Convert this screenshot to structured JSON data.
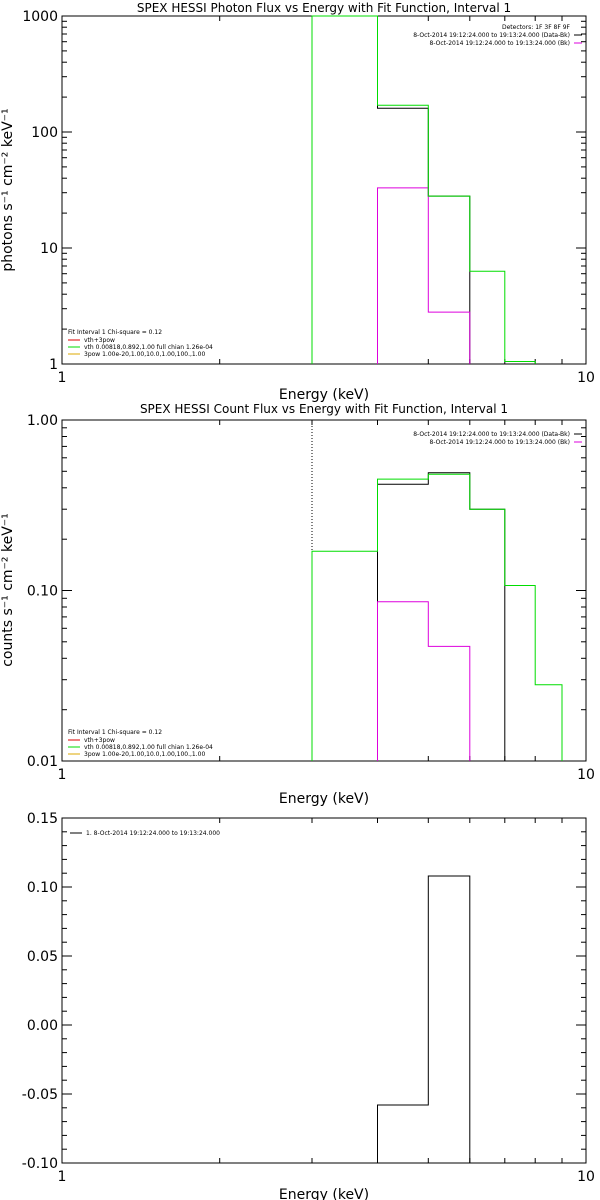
{
  "colors": {
    "background": "#ffffff",
    "axis": "#000000",
    "black": "#000000",
    "green": "#00dd00",
    "magenta": "#dd00dd",
    "red": "#dd0000",
    "orange": "#ddaa00"
  },
  "chart_data": [
    {
      "type": "line",
      "step": true,
      "title": "SPEX HESSI Photon Flux vs Energy with Fit Function, Interval 1",
      "xlabel": "Energy (keV)",
      "ylabel": "photons s⁻¹ cm⁻² keV⁻¹",
      "xscale": "log",
      "yscale": "log",
      "xlim": [
        1,
        10
      ],
      "ylim": [
        1,
        1000
      ],
      "xticks": [
        1,
        10
      ],
      "xtick_labels": [
        "1",
        "10"
      ],
      "yticks": [
        1,
        10,
        100,
        1000
      ],
      "ytick_labels": [
        "1",
        "10",
        "100",
        "1000"
      ],
      "vline": {
        "x": 3,
        "style": "dotted"
      },
      "series": [
        {
          "color_key": "black",
          "edges": [
            3,
            4,
            5,
            6
          ],
          "values": [
            1000,
            160,
            28
          ]
        },
        {
          "color_key": "magenta",
          "edges": [
            4,
            5,
            6
          ],
          "values": [
            33,
            2.8
          ]
        },
        {
          "color_key": "green",
          "edges": [
            3,
            4,
            5,
            6,
            7,
            8
          ],
          "values": [
            1000,
            170,
            28,
            6.3,
            1.05
          ]
        }
      ],
      "legend_right": {
        "placement": "top-right",
        "header": "Detectors: 1F 3F 8F 9F",
        "entries": [
          {
            "text": "8-Oct-2014 19:12:24.000 to 19:13:24.000 (Data-Bk)",
            "color_key": "black"
          },
          {
            "text": "8-Oct-2014 19:12:24.000 to 19:13:24.000 (Bk)",
            "color_key": "magenta"
          }
        ]
      },
      "legend_left": {
        "placement": "bottom-left",
        "header": "Fit Interval 1   Chi-square = 0.12",
        "entries": [
          {
            "text": "vth+3pow",
            "color_key": "red"
          },
          {
            "text": "vth 0.00818,0.892,1.00   full chian 1.26e-04",
            "color_key": "green"
          },
          {
            "text": "3pow 1.00e-20,1.00,10.0,1.00,100.,1.00",
            "color_key": "orange"
          }
        ]
      }
    },
    {
      "type": "line",
      "step": true,
      "title": "SPEX HESSI Count Flux vs Energy with Fit Function, Interval 1",
      "xlabel": "Energy (keV)",
      "ylabel": "counts s⁻¹ cm⁻² keV⁻¹",
      "xscale": "log",
      "yscale": "log",
      "xlim": [
        1,
        10
      ],
      "ylim": [
        0.01,
        1.0
      ],
      "xticks": [
        1,
        10
      ],
      "xtick_labels": [
        "1",
        "10"
      ],
      "yticks": [
        0.01,
        0.1,
        1.0
      ],
      "ytick_labels": [
        "0.01",
        "0.10",
        "1.00"
      ],
      "vline": {
        "x": 3,
        "style": "dotted"
      },
      "series": [
        {
          "color_key": "black",
          "edges": [
            4,
            5,
            6,
            7
          ],
          "values": [
            0.42,
            0.49,
            0.3
          ]
        },
        {
          "color_key": "magenta",
          "edges": [
            4,
            5,
            6
          ],
          "values": [
            0.086,
            0.047
          ]
        },
        {
          "color_key": "green",
          "edges": [
            3,
            4,
            5,
            6,
            7,
            8,
            9
          ],
          "values": [
            0.17,
            0.45,
            0.48,
            0.3,
            0.107,
            0.028
          ]
        }
      ],
      "legend_right": {
        "placement": "top-right",
        "entries": [
          {
            "text": "8-Oct-2014 19:12:24.000 to 19:13:24.000 (Data-Bk)",
            "color_key": "black"
          },
          {
            "text": "8-Oct-2014 19:12:24.000 to 19:13:24.000 (Bk)",
            "color_key": "magenta"
          }
        ]
      },
      "legend_left": {
        "placement": "bottom-left",
        "header": "Fit Interval 1   Chi-square = 0.12",
        "entries": [
          {
            "text": "vth+3pow",
            "color_key": "red"
          },
          {
            "text": "vth 0.00818,0.892,1.00   full chian 1.26e-04",
            "color_key": "green"
          },
          {
            "text": "3pow 1.00e-20,1.00,10.0,1.00,100.,1.00",
            "color_key": "orange"
          }
        ]
      }
    },
    {
      "type": "line",
      "step": true,
      "title": "",
      "xlabel": "Energy (keV)",
      "ylabel": "",
      "xscale": "log",
      "yscale": "linear",
      "xlim": [
        1,
        10
      ],
      "ylim": [
        -0.1,
        0.15
      ],
      "xticks": [
        1,
        10
      ],
      "xtick_labels": [
        "1",
        "10"
      ],
      "yticks": [
        -0.1,
        -0.05,
        0.0,
        0.05,
        0.1,
        0.15
      ],
      "ytick_labels": [
        "-0.10",
        "-0.05",
        "0.00",
        "0.05",
        "0.10",
        "0.15"
      ],
      "series": [
        {
          "color_key": "black",
          "edges": [
            4,
            5,
            6
          ],
          "values": [
            -0.058,
            0.108
          ]
        }
      ],
      "legend_left": {
        "placement": "top-left",
        "entries": [
          {
            "text": "1.  8-Oct-2014 19:12:24.000 to 19:13:24.000",
            "color_key": "black"
          }
        ]
      }
    }
  ]
}
